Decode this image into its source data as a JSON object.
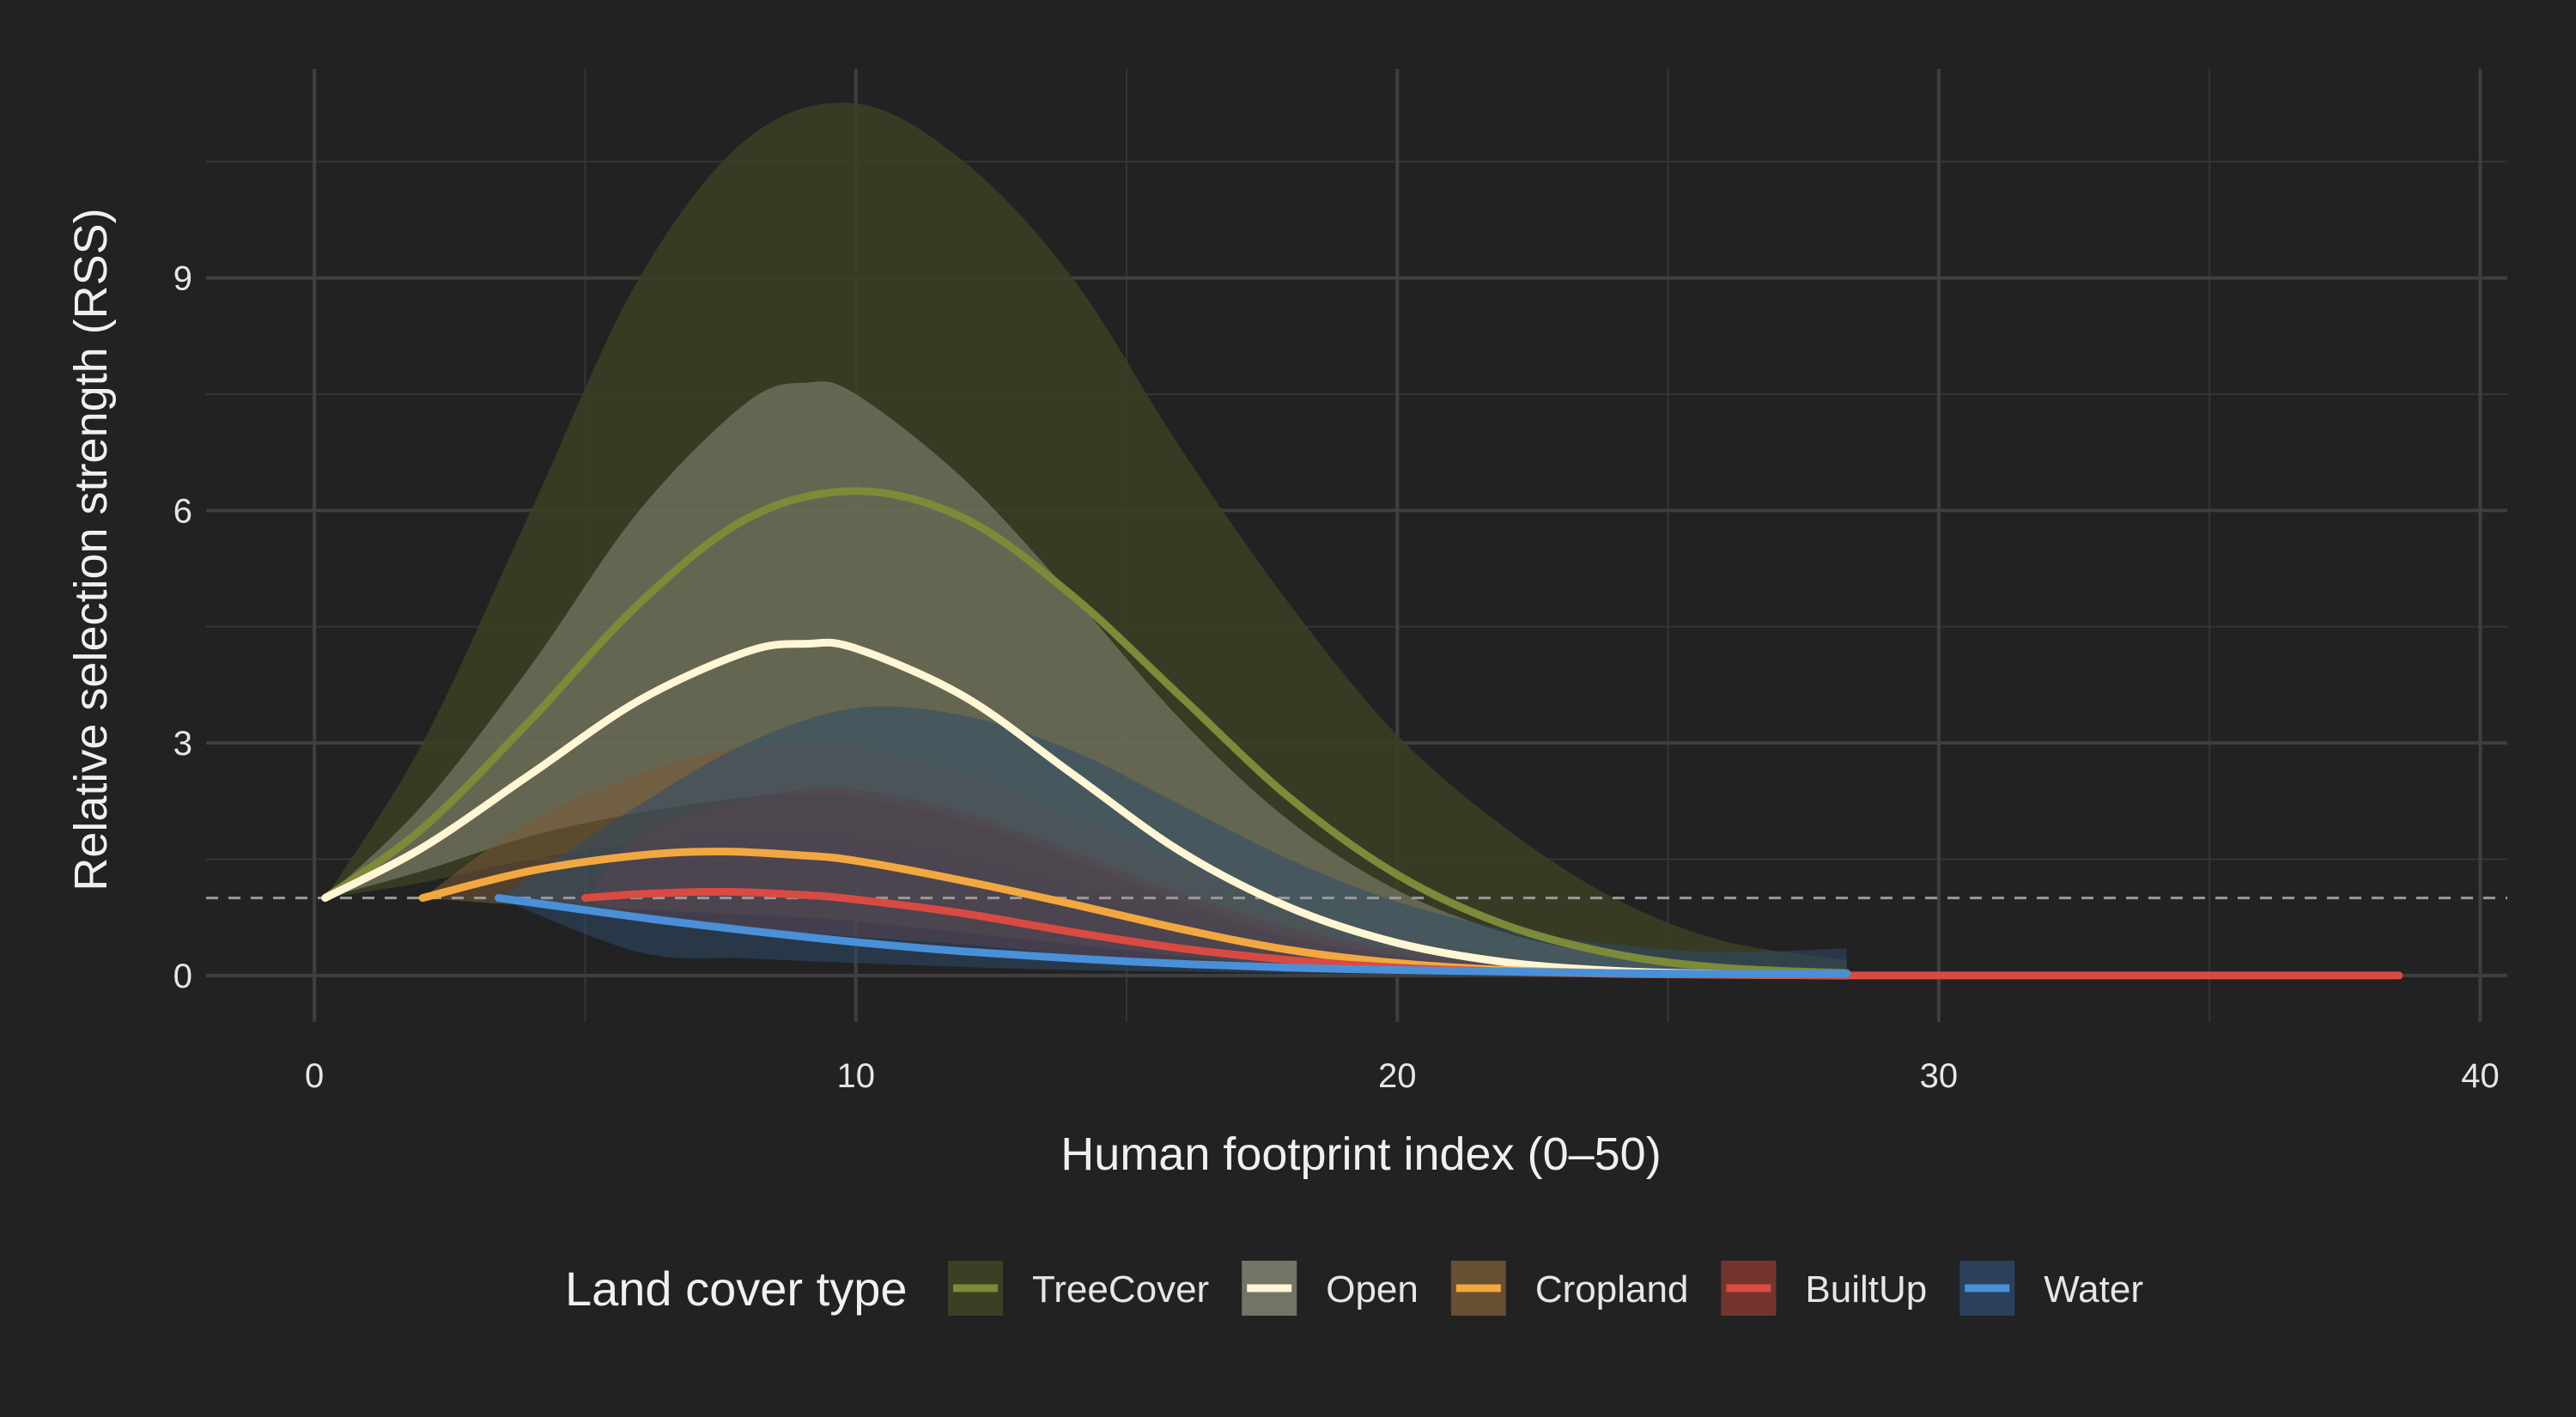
{
  "chart_data": {
    "type": "line",
    "xlabel": "Human footprint index (0–50)",
    "ylabel": "Relative selection strength (RSS)",
    "xlim": [
      -2,
      40.5
    ],
    "ylim": [
      -0.6,
      11.7
    ],
    "x_ticks": [
      0,
      10,
      20,
      30,
      40
    ],
    "y_ticks": [
      0,
      3,
      6,
      9
    ],
    "x_minor_ticks": [
      5,
      15,
      25,
      35
    ],
    "y_minor_ticks": [
      1.5,
      4.5,
      7.5,
      10.5
    ],
    "reference_line": {
      "y": 1,
      "style": "dashed"
    },
    "grid": true,
    "legend": {
      "title": "Land cover type",
      "position": "bottom",
      "entries": [
        "TreeCover",
        "Open",
        "Cropland",
        "BuiltUp",
        "Water"
      ]
    },
    "series": [
      {
        "name": "TreeCover",
        "color": "#7c8a3a",
        "band_color": "#3b3f23",
        "band_opacity": 0.85,
        "x": [
          0.2,
          2,
          4,
          6,
          8,
          10,
          12,
          14,
          16,
          18,
          20,
          22,
          24,
          26,
          28.3
        ],
        "y": [
          1.0,
          1.9,
          3.3,
          4.8,
          5.9,
          6.25,
          5.9,
          4.9,
          3.6,
          2.3,
          1.3,
          0.65,
          0.28,
          0.1,
          0.03
        ],
        "lower": [
          1.0,
          1.2,
          1.5,
          1.7,
          1.8,
          1.75,
          1.5,
          1.15,
          0.8,
          0.5,
          0.3,
          0.15,
          0.07,
          0.03,
          0.01
        ],
        "upper": [
          1.0,
          3.0,
          6.0,
          9.0,
          10.8,
          11.25,
          10.5,
          9.0,
          6.8,
          4.8,
          3.1,
          1.9,
          1.0,
          0.45,
          0.2
        ]
      },
      {
        "name": "Open",
        "color": "#fff6d5",
        "band_color": "#8a8a78",
        "band_opacity": 0.55,
        "x": [
          0.2,
          2,
          4,
          6,
          8,
          9.1,
          10,
          12,
          14,
          16,
          18,
          20,
          22,
          24,
          26,
          28.3
        ],
        "y": [
          1.0,
          1.65,
          2.6,
          3.55,
          4.18,
          4.28,
          4.22,
          3.6,
          2.6,
          1.6,
          0.88,
          0.42,
          0.17,
          0.06,
          0.02,
          0.01
        ],
        "lower": [
          1.0,
          1.35,
          1.8,
          2.1,
          2.3,
          2.35,
          2.3,
          2.0,
          1.5,
          0.95,
          0.5,
          0.25,
          0.1,
          0.04,
          0.01,
          0.0
        ],
        "upper": [
          1.0,
          2.2,
          4.0,
          6.0,
          7.4,
          7.65,
          7.5,
          6.4,
          4.9,
          3.3,
          2.0,
          1.1,
          0.55,
          0.25,
          0.1,
          0.04
        ]
      },
      {
        "name": "Cropland",
        "color": "#f2a840",
        "band_color": "#7a5a38",
        "band_opacity": 0.55,
        "x": [
          2,
          4,
          6,
          7.5,
          9,
          10,
          12,
          14,
          16,
          18,
          20,
          22,
          24,
          26,
          28.3
        ],
        "y": [
          1.0,
          1.35,
          1.55,
          1.6,
          1.55,
          1.48,
          1.22,
          0.92,
          0.6,
          0.33,
          0.16,
          0.07,
          0.03,
          0.01,
          0.0
        ],
        "lower": [
          1.0,
          0.9,
          0.85,
          0.8,
          0.75,
          0.7,
          0.55,
          0.4,
          0.25,
          0.13,
          0.06,
          0.02,
          0.01,
          0.0,
          0.0
        ],
        "upper": [
          1.0,
          2.0,
          2.6,
          2.9,
          3.0,
          2.95,
          2.6,
          2.05,
          1.45,
          0.9,
          0.5,
          0.25,
          0.12,
          0.05,
          0.02
        ]
      },
      {
        "name": "BuiltUp",
        "color": "#d94a43",
        "band_color": "#8a3a32",
        "band_opacity": 0.55,
        "x": [
          5,
          6,
          7.5,
          9,
          10,
          12,
          14,
          16,
          18,
          20,
          22,
          24,
          26,
          28.3,
          30,
          32,
          34,
          36,
          38.5
        ],
        "y": [
          1.0,
          1.05,
          1.08,
          1.04,
          0.98,
          0.8,
          0.56,
          0.35,
          0.2,
          0.1,
          0.05,
          0.02,
          0.01,
          0.0,
          0.0,
          0.0,
          0.0,
          0.0,
          0.0
        ],
        "lower": [
          1.0,
          0.7,
          0.6,
          0.55,
          0.5,
          0.4,
          0.27,
          0.16,
          0.09,
          0.04,
          0.02,
          0.01,
          0.0,
          0.0,
          0.0,
          0.0,
          0.0,
          0.0,
          0.0
        ],
        "upper": [
          1.0,
          1.8,
          2.2,
          2.4,
          2.4,
          2.1,
          1.6,
          1.05,
          0.62,
          0.33,
          0.16,
          0.07,
          0.03,
          0.01,
          0.0,
          0.0,
          0.0,
          0.0,
          0.0
        ]
      },
      {
        "name": "Water",
        "color": "#4a90d9",
        "band_color": "#2e4a6a",
        "band_opacity": 0.55,
        "x": [
          3.4,
          6,
          8,
          10,
          12,
          14,
          16,
          18,
          20,
          22,
          24,
          26,
          28.3
        ],
        "y": [
          1.0,
          0.75,
          0.58,
          0.43,
          0.31,
          0.22,
          0.15,
          0.1,
          0.07,
          0.05,
          0.03,
          0.02,
          0.02
        ],
        "lower": [
          1.0,
          0.3,
          0.22,
          0.16,
          0.11,
          0.07,
          0.05,
          0.03,
          0.02,
          0.01,
          0.01,
          0.0,
          0.0
        ],
        "upper": [
          1.0,
          2.2,
          3.0,
          3.45,
          3.35,
          2.9,
          2.2,
          1.5,
          0.95,
          0.6,
          0.4,
          0.3,
          0.35
        ]
      }
    ]
  }
}
